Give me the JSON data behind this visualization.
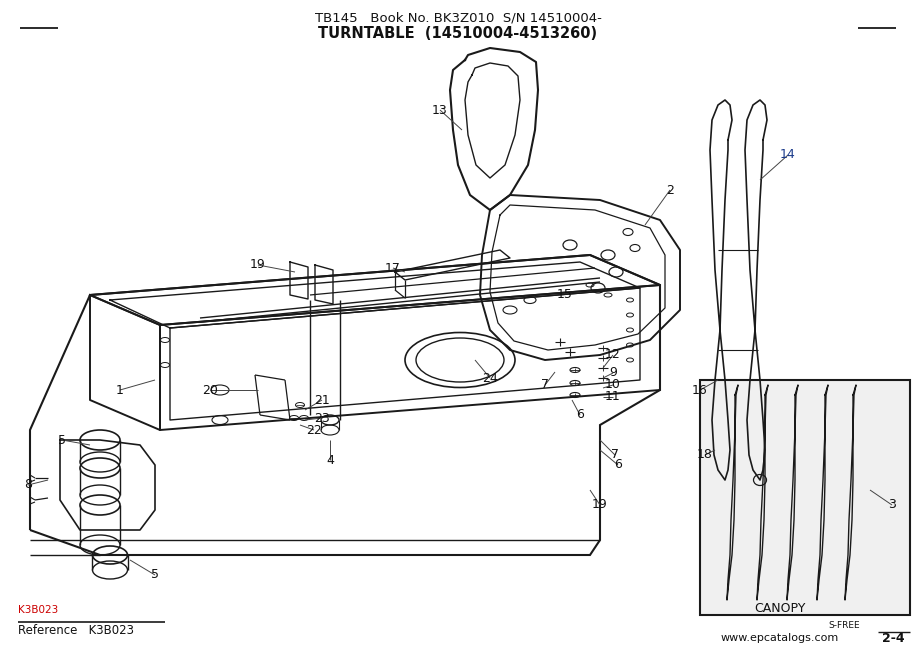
{
  "title_line1": "TB145   Book No. BK3Z010  S/N 14510004-",
  "title_line2": "TURNTABLE  (14510004-4513260)",
  "bg_color": "#ffffff",
  "line_color": "#1a1a1a",
  "text_color": "#111111",
  "blue_color": "#1a3a8a",
  "red_color": "#cc0000",
  "page_ref": "2-4",
  "website": "www.epcatalogs.com",
  "sfree_text": "S-FREE",
  "canopy_label": "CANOPY",
  "fig_w": 9.16,
  "fig_h": 6.5,
  "dpi": 100
}
